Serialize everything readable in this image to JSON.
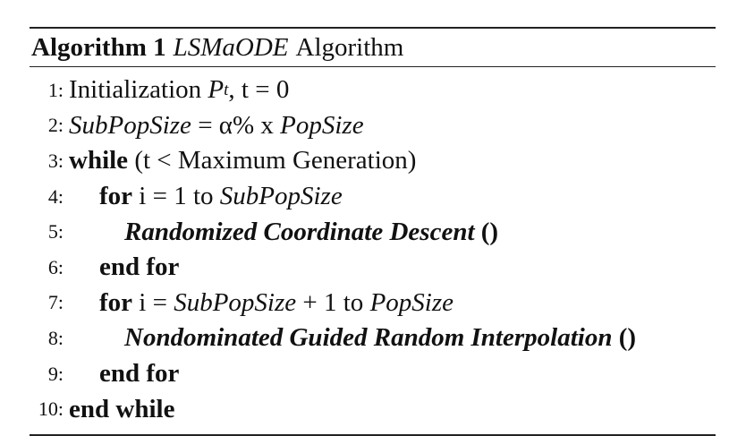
{
  "algorithm": {
    "label": "Algorithm 1",
    "name": "LSMaODE",
    "suffix": "Algorithm"
  },
  "lines": {
    "1": {
      "num": "1:",
      "text": "Initialization",
      "var": "P",
      "sub": "t",
      "rest": ", t = 0"
    },
    "2": {
      "num": "2:",
      "lhs": "SubPopSize",
      "eq": " = α% x ",
      "rhs": "PopSize"
    },
    "3": {
      "num": "3:",
      "kw": "while",
      "text": " (t < Maximum Generation)"
    },
    "4": {
      "num": "4:",
      "kw": "for",
      "mid": " i = 1 to ",
      "var": "SubPopSize"
    },
    "5": {
      "num": "5:",
      "call": "Randomized Coordinate Descent",
      "paren": " ()"
    },
    "6": {
      "num": "6:",
      "kw": "end for"
    },
    "7": {
      "num": "7:",
      "kw": "for",
      "mid": " i = ",
      "var1": "SubPopSize",
      "plus": " + 1 to ",
      "var2": "PopSize"
    },
    "8": {
      "num": "8:",
      "call": "Nondominated Guided Random Interpolation",
      "paren": " ()"
    },
    "9": {
      "num": "9:",
      "kw": "end for"
    },
    "10": {
      "num": "10:",
      "kw": "end while"
    }
  }
}
